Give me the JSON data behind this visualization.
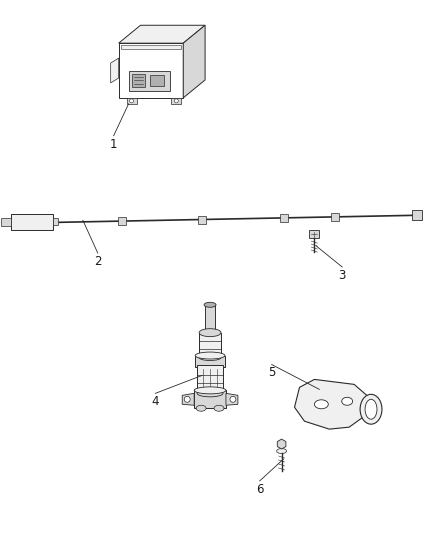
{
  "background_color": "#ffffff",
  "fig_width": 4.38,
  "fig_height": 5.33,
  "dpi": 100,
  "line_color": "#2a2a2a",
  "label_color": "#1a1a1a",
  "label_fontsize": 8.5,
  "fill_light": "#f0f0f0",
  "fill_mid": "#d8d8d8",
  "fill_dark": "#b0b0b0",
  "fill_white": "#ffffff"
}
